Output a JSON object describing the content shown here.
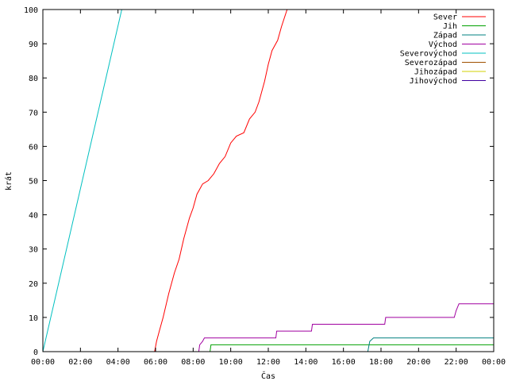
{
  "chart_data": {
    "type": "line",
    "title": "",
    "xlabel": "Čas",
    "ylabel": "krát",
    "xlim": [
      0,
      24
    ],
    "ylim": [
      0,
      100
    ],
    "x_ticks": [
      {
        "value": 0,
        "label": "00:00"
      },
      {
        "value": 2,
        "label": "02:00"
      },
      {
        "value": 4,
        "label": "04:00"
      },
      {
        "value": 6,
        "label": "06:00"
      },
      {
        "value": 8,
        "label": "08:00"
      },
      {
        "value": 10,
        "label": "10:00"
      },
      {
        "value": 12,
        "label": "12:00"
      },
      {
        "value": 14,
        "label": "14:00"
      },
      {
        "value": 16,
        "label": "16:00"
      },
      {
        "value": 18,
        "label": "18:00"
      },
      {
        "value": 20,
        "label": "20:00"
      },
      {
        "value": 22,
        "label": "22:00"
      },
      {
        "value": 24,
        "label": "00:00"
      }
    ],
    "y_ticks": [
      {
        "value": 0,
        "label": "0"
      },
      {
        "value": 10,
        "label": "10"
      },
      {
        "value": 20,
        "label": "20"
      },
      {
        "value": 30,
        "label": "30"
      },
      {
        "value": 40,
        "label": "40"
      },
      {
        "value": 50,
        "label": "50"
      },
      {
        "value": 60,
        "label": "60"
      },
      {
        "value": 70,
        "label": "70"
      },
      {
        "value": 80,
        "label": "80"
      },
      {
        "value": 90,
        "label": "90"
      },
      {
        "value": 100,
        "label": "100"
      }
    ],
    "grid": false,
    "legend": "top-right",
    "series": [
      {
        "name": "Sever",
        "color": "#ff0000",
        "points": [
          [
            0,
            0
          ],
          [
            5.95,
            0
          ],
          [
            6.05,
            3
          ],
          [
            6.2,
            6
          ],
          [
            6.4,
            10
          ],
          [
            6.7,
            17
          ],
          [
            7.0,
            23
          ],
          [
            7.25,
            27
          ],
          [
            7.5,
            33
          ],
          [
            7.8,
            39
          ],
          [
            8.0,
            42
          ],
          [
            8.2,
            46
          ],
          [
            8.5,
            49
          ],
          [
            8.8,
            50
          ],
          [
            9.1,
            52
          ],
          [
            9.4,
            55
          ],
          [
            9.7,
            57
          ],
          [
            10.0,
            61
          ],
          [
            10.3,
            63
          ],
          [
            10.7,
            64
          ],
          [
            11.0,
            68
          ],
          [
            11.3,
            70
          ],
          [
            11.5,
            73
          ],
          [
            11.8,
            79
          ],
          [
            12.0,
            84
          ],
          [
            12.2,
            88
          ],
          [
            12.5,
            91
          ],
          [
            12.7,
            95
          ],
          [
            13.0,
            100
          ]
        ]
      },
      {
        "name": "Jih",
        "color": "#00a000",
        "points": [
          [
            0,
            0
          ],
          [
            8.9,
            0
          ],
          [
            8.95,
            2
          ],
          [
            24,
            2
          ]
        ]
      },
      {
        "name": "Západ",
        "color": "#008080",
        "points": [
          [
            0,
            0
          ],
          [
            17.3,
            0
          ],
          [
            17.4,
            3
          ],
          [
            17.6,
            4
          ],
          [
            24,
            4
          ]
        ]
      },
      {
        "name": "Východ",
        "color": "#a000a0",
        "points": [
          [
            0,
            0
          ],
          [
            8.3,
            0
          ],
          [
            8.35,
            2
          ],
          [
            8.5,
            3
          ],
          [
            8.6,
            4
          ],
          [
            12.4,
            4
          ],
          [
            12.45,
            6
          ],
          [
            14.3,
            6
          ],
          [
            14.35,
            8
          ],
          [
            18.2,
            8
          ],
          [
            18.25,
            10
          ],
          [
            21.9,
            10
          ],
          [
            22.0,
            12
          ],
          [
            22.15,
            14
          ],
          [
            24,
            14
          ]
        ]
      },
      {
        "name": "Severovýchod",
        "color": "#00c0c0",
        "points": [
          [
            0,
            0
          ],
          [
            4.2,
            100
          ]
        ]
      },
      {
        "name": "Severozápad",
        "color": "#a05000",
        "points": []
      },
      {
        "name": "Jihozápad",
        "color": "#d0d000",
        "points": []
      },
      {
        "name": "Jihovýchod",
        "color": "#4000a0",
        "points": []
      }
    ]
  }
}
